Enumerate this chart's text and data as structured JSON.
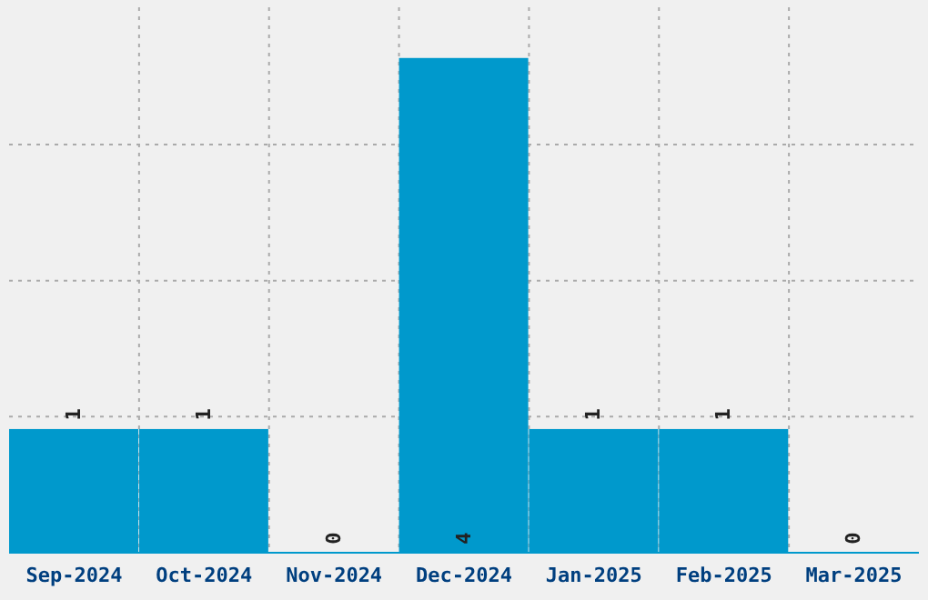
{
  "chart_data": {
    "type": "bar",
    "categories": [
      "Sep-2024",
      "Oct-2024",
      "Nov-2024",
      "Dec-2024",
      "Jan-2025",
      "Feb-2025",
      "Mar-2025"
    ],
    "values": [
      1,
      1,
      0,
      4,
      1,
      1,
      0
    ],
    "color": "#0099cc",
    "ylim": [
      0,
      4.41
    ],
    "yticks": [
      {
        "value": 1.1,
        "label": null
      },
      {
        "value": 2.2,
        "label": null
      },
      {
        "value": 3.3,
        "label": null
      }
    ],
    "grid": true,
    "data_labels": true,
    "tick_labels": "x"
  }
}
